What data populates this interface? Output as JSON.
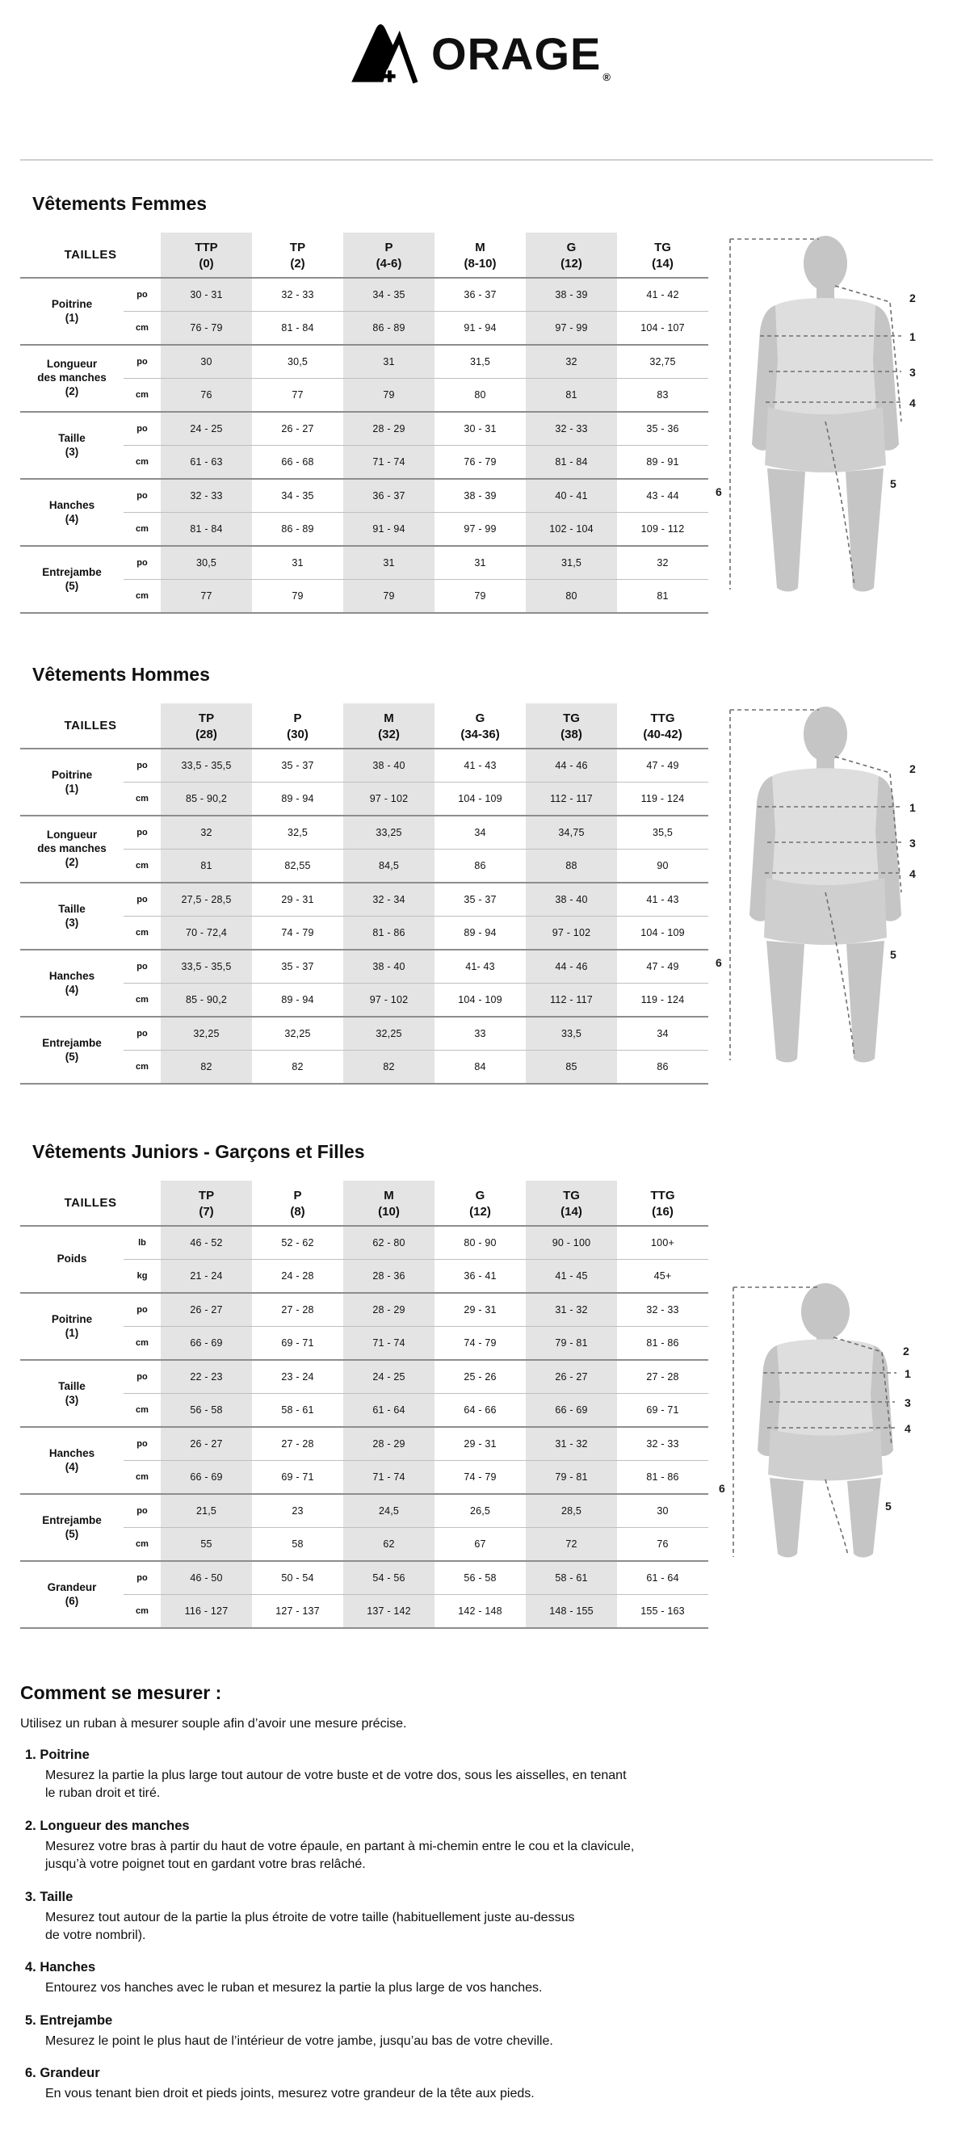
{
  "brand": {
    "logo_text": "ORAGE",
    "registered": "®"
  },
  "figure": {
    "labels": [
      "1",
      "2",
      "3",
      "4",
      "5",
      "6"
    ]
  },
  "colors": {
    "column_shade": "#e4e4e4",
    "rule_dark": "#8d8d8d",
    "rule_light": "#bfbfbf",
    "figure_gray": "#c5c5c5",
    "figure_light": "#dedede",
    "text": "#101010"
  },
  "sections": [
    {
      "id": "femmes",
      "title": "Vêtements Femmes",
      "table": {
        "corner": "TAILLES",
        "columns": [
          {
            "size": "TTP",
            "range": "(0)"
          },
          {
            "size": "TP",
            "range": "(2)"
          },
          {
            "size": "P",
            "range": "(4-6)"
          },
          {
            "size": "M",
            "range": "(8-10)"
          },
          {
            "size": "G",
            "range": "(12)"
          },
          {
            "size": "TG",
            "range": "(14)"
          }
        ],
        "rows": [
          {
            "label": [
              "Poitrine",
              "(1)"
            ],
            "units": [
              "po",
              "cm"
            ],
            "values": [
              [
                "30 - 31",
                "32 - 33",
                "34 - 35",
                "36 - 37",
                "38 - 39",
                "41 - 42"
              ],
              [
                "76 - 79",
                "81 - 84",
                "86 - 89",
                "91 - 94",
                "97 - 99",
                "104 - 107"
              ]
            ]
          },
          {
            "label": [
              "Longueur",
              "des manches",
              "(2)"
            ],
            "units": [
              "po",
              "cm"
            ],
            "values": [
              [
                "30",
                "30,5",
                "31",
                "31,5",
                "32",
                "32,75"
              ],
              [
                "76",
                "77",
                "79",
                "80",
                "81",
                "83"
              ]
            ]
          },
          {
            "label": [
              "Taille",
              "(3)"
            ],
            "units": [
              "po",
              "cm"
            ],
            "values": [
              [
                "24 - 25",
                "26 - 27",
                "28 - 29",
                "30 - 31",
                "32 - 33",
                "35 - 36"
              ],
              [
                "61 - 63",
                "66 - 68",
                "71 - 74",
                "76 - 79",
                "81 - 84",
                "89 - 91"
              ]
            ]
          },
          {
            "label": [
              "Hanches",
              "(4)"
            ],
            "units": [
              "po",
              "cm"
            ],
            "values": [
              [
                "32 - 33",
                "34 - 35",
                "36 - 37",
                "38 - 39",
                "40 - 41",
                "43 - 44"
              ],
              [
                "81 - 84",
                "86 - 89",
                "91 - 94",
                "97 - 99",
                "102 - 104",
                "109 - 112"
              ]
            ]
          },
          {
            "label": [
              "Entrejambe",
              "(5)"
            ],
            "units": [
              "po",
              "cm"
            ],
            "values": [
              [
                "30,5",
                "31",
                "31",
                "31",
                "31,5",
                "32"
              ],
              [
                "77",
                "79",
                "79",
                "79",
                "80",
                "81"
              ]
            ]
          }
        ]
      }
    },
    {
      "id": "hommes",
      "title": "Vêtements Hommes",
      "table": {
        "corner": "TAILLES",
        "columns": [
          {
            "size": "TP",
            "range": "(28)"
          },
          {
            "size": "P",
            "range": "(30)"
          },
          {
            "size": "M",
            "range": "(32)"
          },
          {
            "size": "G",
            "range": "(34-36)"
          },
          {
            "size": "TG",
            "range": "(38)"
          },
          {
            "size": "TTG",
            "range": "(40-42)"
          }
        ],
        "rows": [
          {
            "label": [
              "Poitrine",
              "(1)"
            ],
            "units": [
              "po",
              "cm"
            ],
            "values": [
              [
                "33,5 - 35,5",
                "35 - 37",
                "38 - 40",
                "41 - 43",
                "44 - 46",
                "47 - 49"
              ],
              [
                "85 - 90,2",
                "89 - 94",
                "97 - 102",
                "104 - 109",
                "112 - 117",
                "119 - 124"
              ]
            ]
          },
          {
            "label": [
              "Longueur",
              "des manches",
              "(2)"
            ],
            "units": [
              "po",
              "cm"
            ],
            "values": [
              [
                "32",
                "32,5",
                "33,25",
                "34",
                "34,75",
                "35,5"
              ],
              [
                "81",
                "82,55",
                "84,5",
                "86",
                "88",
                "90"
              ]
            ]
          },
          {
            "label": [
              "Taille",
              "(3)"
            ],
            "units": [
              "po",
              "cm"
            ],
            "values": [
              [
                "27,5 - 28,5",
                "29 - 31",
                "32 - 34",
                "35 - 37",
                "38 - 40",
                "41 - 43"
              ],
              [
                "70 - 72,4",
                "74 - 79",
                "81 - 86",
                "89 - 94",
                "97 - 102",
                "104 - 109"
              ]
            ]
          },
          {
            "label": [
              "Hanches",
              "(4)"
            ],
            "units": [
              "po",
              "cm"
            ],
            "values": [
              [
                "33,5 - 35,5",
                "35 - 37",
                "38 - 40",
                "41- 43",
                "44 - 46",
                "47 - 49"
              ],
              [
                "85 - 90,2",
                "89 - 94",
                "97 - 102",
                "104 - 109",
                "112 - 117",
                "119 - 124"
              ]
            ]
          },
          {
            "label": [
              "Entrejambe",
              "(5)"
            ],
            "units": [
              "po",
              "cm"
            ],
            "values": [
              [
                "32,25",
                "32,25",
                "32,25",
                "33",
                "33,5",
                "34"
              ],
              [
                "82",
                "82",
                "82",
                "84",
                "85",
                "86"
              ]
            ]
          }
        ]
      }
    },
    {
      "id": "juniors",
      "title": "Vêtements Juniors - Garçons et Filles",
      "table": {
        "corner": "TAILLES",
        "columns": [
          {
            "size": "TP",
            "range": "(7)"
          },
          {
            "size": "P",
            "range": "(8)"
          },
          {
            "size": "M",
            "range": "(10)"
          },
          {
            "size": "G",
            "range": "(12)"
          },
          {
            "size": "TG",
            "range": "(14)"
          },
          {
            "size": "TTG",
            "range": "(16)"
          }
        ],
        "rows": [
          {
            "label": [
              "Poids"
            ],
            "units": [
              "lb",
              "kg"
            ],
            "values": [
              [
                "46 - 52",
                "52 - 62",
                "62 - 80",
                "80 - 90",
                "90 - 100",
                "100+"
              ],
              [
                "21 - 24",
                "24 - 28",
                "28 - 36",
                "36 - 41",
                "41 - 45",
                "45+"
              ]
            ]
          },
          {
            "label": [
              "Poitrine",
              "(1)"
            ],
            "units": [
              "po",
              "cm"
            ],
            "values": [
              [
                "26 - 27",
                "27 - 28",
                "28 - 29",
                "29 - 31",
                "31 - 32",
                "32 - 33"
              ],
              [
                "66 - 69",
                "69 - 71",
                "71 - 74",
                "74 - 79",
                "79 - 81",
                "81 - 86"
              ]
            ]
          },
          {
            "label": [
              "Taille",
              "(3)"
            ],
            "units": [
              "po",
              "cm"
            ],
            "values": [
              [
                "22 - 23",
                "23 - 24",
                "24 - 25",
                "25 - 26",
                "26 - 27",
                "27 - 28"
              ],
              [
                "56 - 58",
                "58 - 61",
                "61 - 64",
                "64 - 66",
                "66 - 69",
                "69 - 71"
              ]
            ]
          },
          {
            "label": [
              "Hanches",
              "(4)"
            ],
            "units": [
              "po",
              "cm"
            ],
            "values": [
              [
                "26 - 27",
                "27 - 28",
                "28 - 29",
                "29 - 31",
                "31 - 32",
                "32 - 33"
              ],
              [
                "66 - 69",
                "69 - 71",
                "71 - 74",
                "74 - 79",
                "79 - 81",
                "81 - 86"
              ]
            ]
          },
          {
            "label": [
              "Entrejambe",
              "(5)"
            ],
            "units": [
              "po",
              "cm"
            ],
            "values": [
              [
                "21,5",
                "23",
                "24,5",
                "26,5",
                "28,5",
                "30"
              ],
              [
                "55",
                "58",
                "62",
                "67",
                "72",
                "76"
              ]
            ]
          },
          {
            "label": [
              "Grandeur",
              "(6)"
            ],
            "units": [
              "po",
              "cm"
            ],
            "values": [
              [
                "46 - 50",
                "50 - 54",
                "54 - 56",
                "56 - 58",
                "58 - 61",
                "61 - 64"
              ],
              [
                "116 - 127",
                "127 - 137",
                "137 - 142",
                "142 - 148",
                "148 - 155",
                "155 - 163"
              ]
            ]
          }
        ]
      }
    }
  ],
  "howto": {
    "title": "Comment se mesurer :",
    "intro": "Utilisez un ruban à mesurer souple afin d’avoir une mesure précise.",
    "items": [
      {
        "num": "1.",
        "label": "Poitrine",
        "lines": [
          "Mesurez la partie la plus large tout autour de votre buste et de votre dos, sous les aisselles, en tenant",
          "le ruban droit et tiré."
        ]
      },
      {
        "num": "2.",
        "label": "Longueur des manches",
        "lines": [
          "Mesurez votre bras à partir du haut de votre épaule, en partant à mi-chemin entre le cou et la clavicule,",
          "jusqu’à votre poignet tout en gardant votre bras relâché."
        ]
      },
      {
        "num": "3.",
        "label": "Taille",
        "lines": [
          "Mesurez tout autour de la partie la plus étroite de votre taille (habituellement juste au-dessus",
          "de votre nombril)."
        ]
      },
      {
        "num": "4.",
        "label": "Hanches",
        "lines": [
          "Entourez vos hanches avec le ruban et mesurez la partie la plus large de vos hanches."
        ]
      },
      {
        "num": "5.",
        "label": "Entrejambe",
        "lines": [
          "Mesurez le point le plus haut de l’intérieur de votre jambe, jusqu’au bas de votre cheville."
        ]
      },
      {
        "num": "6.",
        "label": "Grandeur",
        "lines": [
          "En vous tenant bien droit et pieds joints, mesurez votre grandeur de la tête aux pieds."
        ]
      }
    ]
  }
}
